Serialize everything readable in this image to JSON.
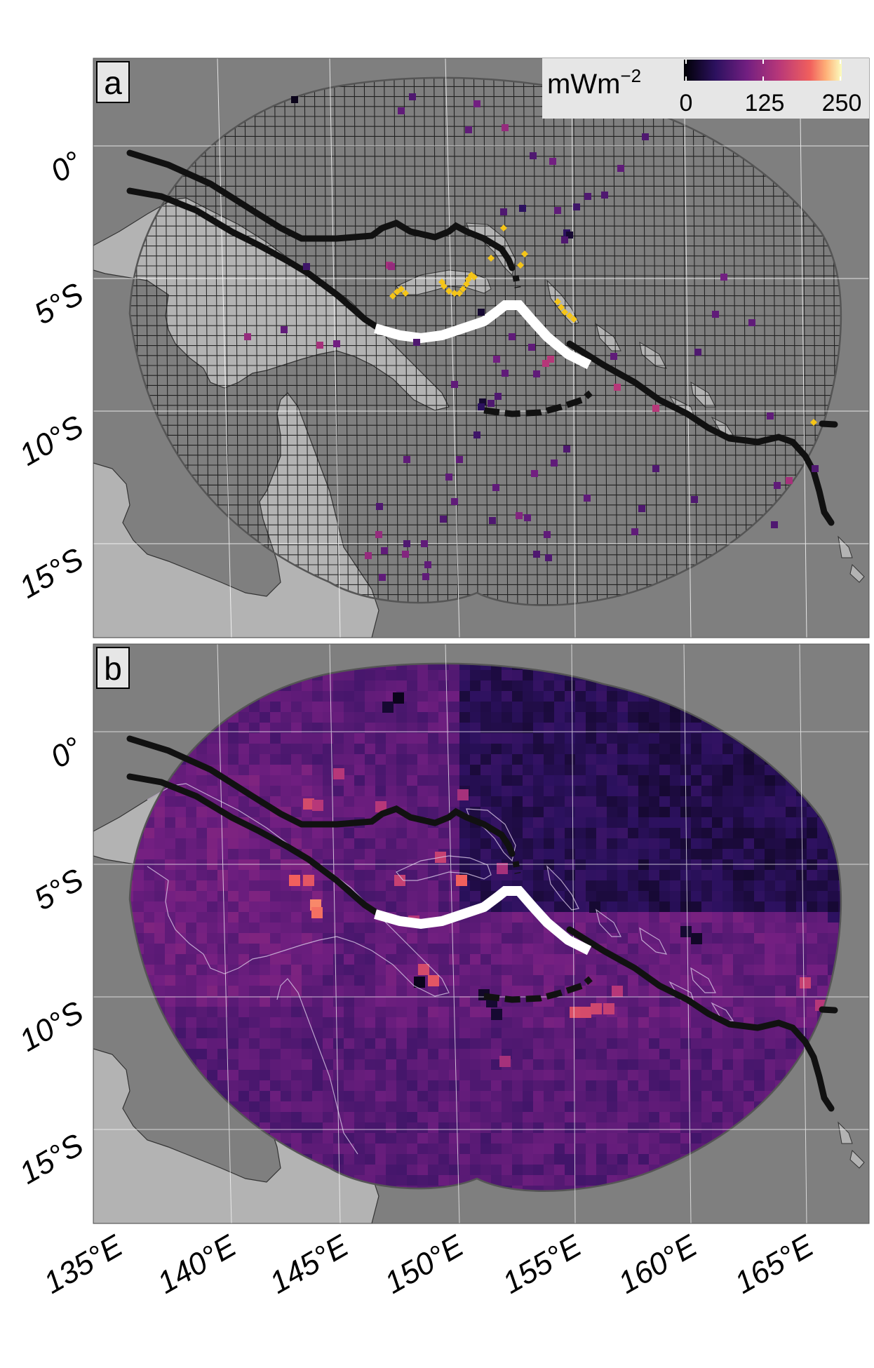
{
  "panels": [
    {
      "id": "a",
      "label": "a",
      "description_kind": "observation-points-grid"
    },
    {
      "id": "b",
      "label": "b",
      "description_kind": "gridded-heat-flow"
    }
  ],
  "axes": {
    "lat_ticks": [
      "0°",
      "5°S",
      "10°S",
      "15°S"
    ],
    "lon_ticks": [
      "135°E",
      "140°E",
      "145°E",
      "150°E",
      "155°E",
      "160°E",
      "165°E"
    ]
  },
  "colorbar": {
    "unit_base": "mWm",
    "unit_exp": "−2",
    "ticks": [
      "0",
      "125",
      "250"
    ],
    "range": [
      0,
      250
    ],
    "palette": "magma"
  },
  "colors": {
    "ocean": "#7f7f7f",
    "land": "#b3b3b3",
    "trench_line": "#111111",
    "ridge_line": "#ffffff",
    "marker_yellow": "#f5c518"
  }
}
